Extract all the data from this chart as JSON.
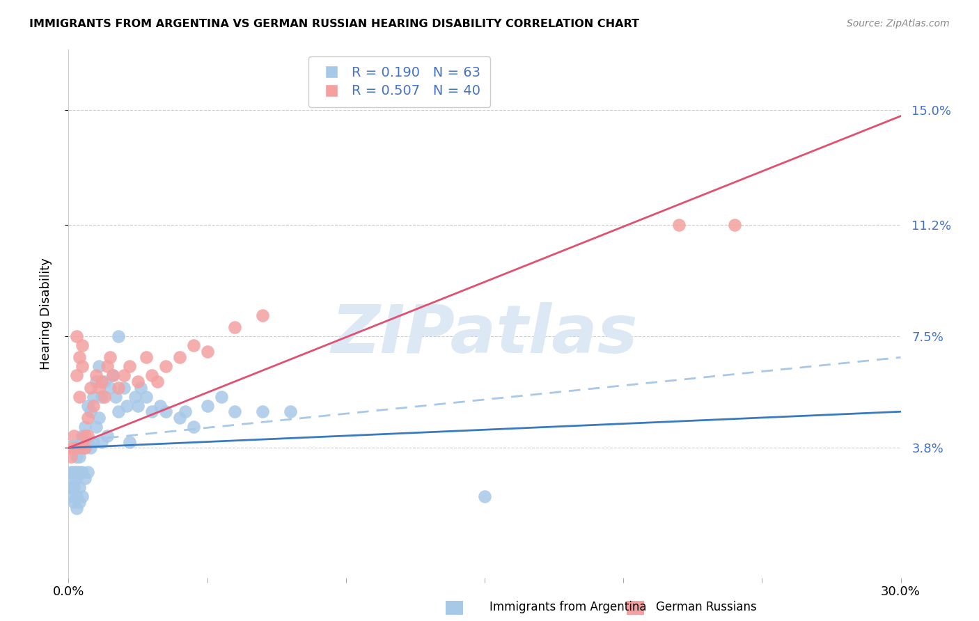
{
  "title": "IMMIGRANTS FROM ARGENTINA VS GERMAN RUSSIAN HEARING DISABILITY CORRELATION CHART",
  "source": "Source: ZipAtlas.com",
  "ylabel": "Hearing Disability",
  "ytick_labels": [
    "15.0%",
    "11.2%",
    "7.5%",
    "3.8%"
  ],
  "ytick_values": [
    0.15,
    0.112,
    0.075,
    0.038
  ],
  "xlim": [
    0.0,
    0.3
  ],
  "ylim": [
    -0.005,
    0.17
  ],
  "legend_r_values": [
    "0.190",
    "0.507"
  ],
  "legend_n_values": [
    "63",
    "40"
  ],
  "argentina_scatter_color": "#a8c8e8",
  "german_russian_scatter_color": "#f4a0a0",
  "argentina_line_color": "#3a7abf",
  "german_russian_line_color": "#e05070",
  "argentina_dashed_color": "#a8c8e8",
  "watermark_color": "#dde8f5",
  "argentina_points_x": [
    0.001,
    0.001,
    0.001,
    0.002,
    0.002,
    0.002,
    0.002,
    0.003,
    0.003,
    0.003,
    0.003,
    0.003,
    0.004,
    0.004,
    0.004,
    0.004,
    0.004,
    0.005,
    0.005,
    0.005,
    0.005,
    0.006,
    0.006,
    0.006,
    0.007,
    0.007,
    0.007,
    0.008,
    0.008,
    0.009,
    0.009,
    0.01,
    0.01,
    0.011,
    0.011,
    0.012,
    0.012,
    0.013,
    0.014,
    0.015,
    0.016,
    0.017,
    0.018,
    0.018,
    0.02,
    0.021,
    0.022,
    0.024,
    0.025,
    0.026,
    0.028,
    0.03,
    0.033,
    0.035,
    0.04,
    0.042,
    0.045,
    0.05,
    0.055,
    0.06,
    0.07,
    0.08,
    0.15
  ],
  "argentina_points_y": [
    0.03,
    0.025,
    0.022,
    0.03,
    0.028,
    0.025,
    0.02,
    0.035,
    0.03,
    0.028,
    0.022,
    0.018,
    0.038,
    0.035,
    0.03,
    0.025,
    0.02,
    0.042,
    0.038,
    0.03,
    0.022,
    0.045,
    0.038,
    0.028,
    0.052,
    0.04,
    0.03,
    0.05,
    0.038,
    0.055,
    0.04,
    0.06,
    0.045,
    0.065,
    0.048,
    0.055,
    0.04,
    0.06,
    0.042,
    0.058,
    0.062,
    0.055,
    0.075,
    0.05,
    0.058,
    0.052,
    0.04,
    0.055,
    0.052,
    0.058,
    0.055,
    0.05,
    0.052,
    0.05,
    0.048,
    0.05,
    0.045,
    0.052,
    0.055,
    0.05,
    0.05,
    0.05,
    0.022
  ],
  "german_russian_points_x": [
    0.001,
    0.001,
    0.002,
    0.002,
    0.003,
    0.003,
    0.003,
    0.004,
    0.004,
    0.005,
    0.005,
    0.005,
    0.006,
    0.006,
    0.007,
    0.007,
    0.008,
    0.009,
    0.01,
    0.011,
    0.012,
    0.013,
    0.014,
    0.015,
    0.016,
    0.018,
    0.02,
    0.022,
    0.025,
    0.028,
    0.03,
    0.032,
    0.035,
    0.04,
    0.045,
    0.05,
    0.06,
    0.07,
    0.22,
    0.24
  ],
  "german_russian_points_y": [
    0.038,
    0.035,
    0.042,
    0.038,
    0.075,
    0.062,
    0.038,
    0.068,
    0.055,
    0.072,
    0.065,
    0.038,
    0.042,
    0.038,
    0.048,
    0.042,
    0.058,
    0.052,
    0.062,
    0.058,
    0.06,
    0.055,
    0.065,
    0.068,
    0.062,
    0.058,
    0.062,
    0.065,
    0.06,
    0.068,
    0.062,
    0.06,
    0.065,
    0.068,
    0.072,
    0.07,
    0.078,
    0.082,
    0.112,
    0.112
  ],
  "argentina_regression": {
    "x_start": 0.0,
    "x_end": 0.3,
    "y_start": 0.038,
    "y_end": 0.05
  },
  "argentina_regression_dashed": {
    "x_start": 0.0,
    "x_end": 0.3,
    "y_start": 0.04,
    "y_end": 0.068
  },
  "german_russian_regression": {
    "x_start": 0.0,
    "x_end": 0.3,
    "y_start": 0.038,
    "y_end": 0.148
  }
}
